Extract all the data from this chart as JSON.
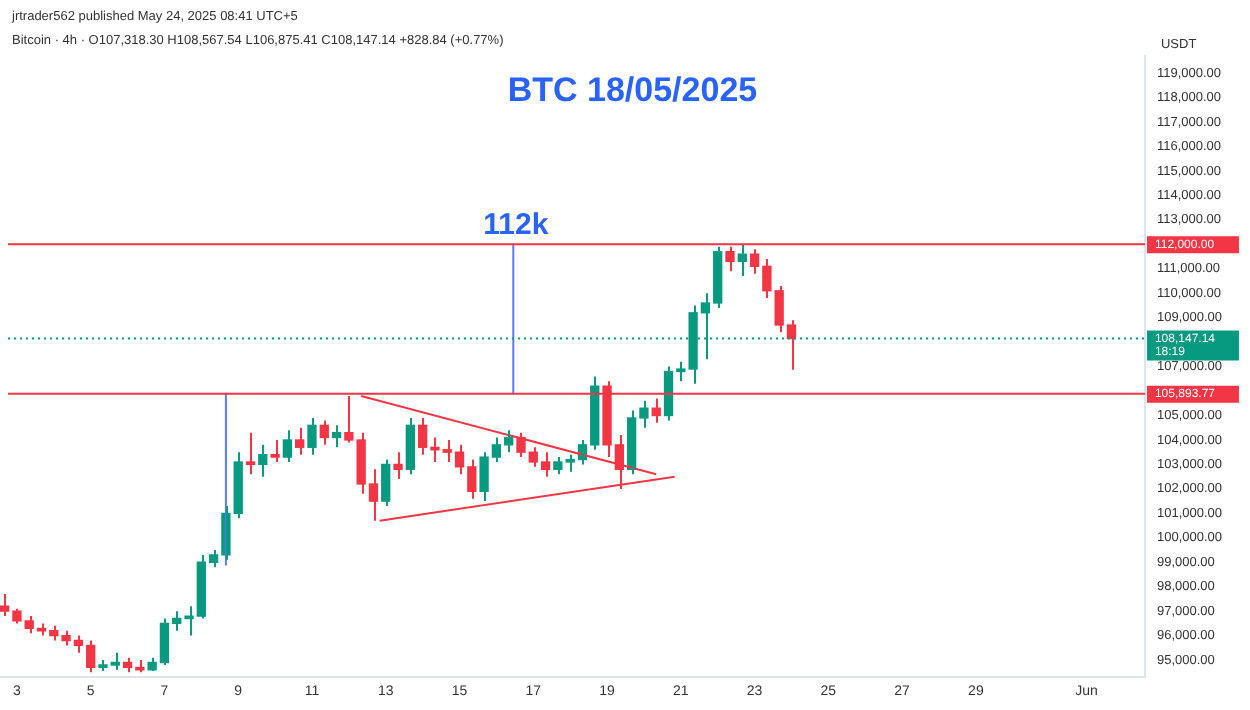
{
  "chart_data": {
    "type": "candlestick",
    "title": "BTC 18/05/2025",
    "ylabel": "USDT",
    "annotations": [
      "jrtrader562 published May 24, 2025 08:41 UTC+5",
      "Bitcoin · 4h · O107,318.30 H108,567.54 L106,875.41 C108,147.14 +828.84 (+0.77%)",
      {
        "text": "112k",
        "x": "2025-05-15T08:00",
        "y": 112000
      }
    ],
    "x": [
      "2025-05-02T16:00",
      "2025-05-03T00:00",
      "2025-05-03T08:00",
      "2025-05-03T16:00",
      "2025-05-04T00:00",
      "2025-05-04T08:00",
      "2025-05-04T16:00",
      "2025-05-05T00:00",
      "2025-05-05T08:00",
      "2025-05-05T16:00",
      "2025-05-06T00:00",
      "2025-05-06T08:00",
      "2025-05-06T16:00",
      "2025-05-07T00:00",
      "2025-05-07T08:00",
      "2025-05-07T16:00",
      "2025-05-08T00:00",
      "2025-05-08T08:00",
      "2025-05-08T16:00",
      "2025-05-09T00:00",
      "2025-05-09T08:00",
      "2025-05-09T16:00",
      "2025-05-10T00:00",
      "2025-05-10T08:00",
      "2025-05-10T16:00",
      "2025-05-11T00:00",
      "2025-05-11T08:00",
      "2025-05-11T16:00",
      "2025-05-12T00:00",
      "2025-05-12T08:00",
      "2025-05-12T16:00",
      "2025-05-13T00:00",
      "2025-05-13T08:00",
      "2025-05-13T16:00",
      "2025-05-14T00:00",
      "2025-05-14T08:00",
      "2025-05-14T16:00",
      "2025-05-15T00:00",
      "2025-05-15T08:00",
      "2025-05-15T16:00",
      "2025-05-16T00:00",
      "2025-05-16T08:00",
      "2025-05-16T16:00",
      "2025-05-17T00:00",
      "2025-05-17T08:00",
      "2025-05-17T16:00",
      "2025-05-18T00:00",
      "2025-05-18T08:00",
      "2025-05-18T16:00",
      "2025-05-19T00:00",
      "2025-05-19T08:00",
      "2025-05-19T16:00",
      "2025-05-20T00:00",
      "2025-05-20T08:00",
      "2025-05-20T16:00",
      "2025-05-21T00:00",
      "2025-05-21T08:00",
      "2025-05-21T16:00",
      "2025-05-22T00:00",
      "2025-05-22T08:00",
      "2025-05-22T16:00",
      "2025-05-23T00:00",
      "2025-05-23T08:00",
      "2025-05-23T16:00",
      "2025-05-24T00:00"
    ],
    "ohlc": [
      [
        97200,
        97700,
        96800,
        97000
      ],
      [
        97000,
        97100,
        96500,
        96600
      ],
      [
        96600,
        96800,
        96100,
        96300
      ],
      [
        96300,
        96500,
        96000,
        96200
      ],
      [
        96200,
        96400,
        95800,
        96000
      ],
      [
        96000,
        96200,
        95600,
        95800
      ],
      [
        95800,
        96000,
        95300,
        95600
      ],
      [
        95600,
        95800,
        94500,
        94700
      ],
      [
        94700,
        95000,
        94550,
        94800
      ],
      [
        94800,
        95300,
        94600,
        94900
      ],
      [
        94900,
        95100,
        94500,
        94700
      ],
      [
        94700,
        95000,
        94500,
        94600
      ],
      [
        94600,
        95100,
        94550,
        94900
      ],
      [
        94900,
        96700,
        94800,
        96500
      ],
      [
        96500,
        97000,
        96200,
        96700
      ],
      [
        96700,
        97200,
        96000,
        96800
      ],
      [
        96800,
        99300,
        96700,
        99000
      ],
      [
        99000,
        99500,
        98800,
        99300
      ],
      [
        99300,
        101300,
        99100,
        101000
      ],
      [
        101000,
        103500,
        100800,
        103100
      ],
      [
        103100,
        104300,
        102600,
        103000
      ],
      [
        103000,
        103800,
        102500,
        103400
      ],
      [
        103400,
        104000,
        103100,
        103300
      ],
      [
        103300,
        104400,
        103100,
        104000
      ],
      [
        104000,
        104500,
        103400,
        103700
      ],
      [
        103700,
        104900,
        103400,
        104600
      ],
      [
        104600,
        104800,
        103800,
        104100
      ],
      [
        104100,
        104600,
        103700,
        104300
      ],
      [
        104300,
        105800,
        103900,
        104000
      ],
      [
        104000,
        104300,
        101800,
        102200
      ],
      [
        102200,
        102800,
        100700,
        101500
      ],
      [
        101500,
        103200,
        101300,
        103000
      ],
      [
        103000,
        103500,
        102400,
        102800
      ],
      [
        102800,
        104900,
        102600,
        104600
      ],
      [
        104600,
        104900,
        103400,
        103700
      ],
      [
        103700,
        104100,
        103100,
        103600
      ],
      [
        103600,
        104000,
        103100,
        103500
      ],
      [
        103500,
        103800,
        102600,
        102900
      ],
      [
        102900,
        103200,
        101600,
        101900
      ],
      [
        101900,
        103500,
        101500,
        103300
      ],
      [
        103300,
        104100,
        103100,
        103800
      ],
      [
        103800,
        104400,
        103500,
        104100
      ],
      [
        104100,
        104300,
        103300,
        103500
      ],
      [
        103500,
        103700,
        102900,
        103100
      ],
      [
        103100,
        103500,
        102500,
        102800
      ],
      [
        102800,
        103300,
        102600,
        103100
      ],
      [
        103100,
        103400,
        102700,
        103200
      ],
      [
        103200,
        104000,
        103000,
        103800
      ],
      [
        103800,
        106600,
        103600,
        106200
      ],
      [
        106200,
        106400,
        103300,
        103800
      ],
      [
        103800,
        104200,
        102000,
        102800
      ],
      [
        102800,
        105200,
        102600,
        104900
      ],
      [
        104900,
        105600,
        104500,
        105300
      ],
      [
        105300,
        105700,
        104700,
        105000
      ],
      [
        105000,
        107000,
        104800,
        106800
      ],
      [
        106800,
        107200,
        106400,
        106900
      ],
      [
        106900,
        109500,
        106300,
        109200
      ],
      [
        109200,
        110000,
        107300,
        109600
      ],
      [
        109600,
        111900,
        109400,
        111700
      ],
      [
        111700,
        111900,
        110900,
        111300
      ],
      [
        111300,
        112000,
        110700,
        111600
      ],
      [
        111600,
        111800,
        110800,
        111100
      ],
      [
        111100,
        111400,
        109800,
        110100
      ],
      [
        110100,
        110300,
        108400,
        108700
      ],
      [
        108700,
        108900,
        106875.41,
        108147.14
      ]
    ],
    "colors": [
      "#f23645",
      "#f23645",
      "#f23645",
      "#f23645",
      "#f23645",
      "#f23645",
      "#f23645",
      "#f23645",
      "#089981",
      "#089981",
      "#f23645",
      "#f23645",
      "#089981",
      "#089981",
      "#089981",
      "#089981",
      "#089981",
      "#089981",
      "#089981",
      "#089981",
      "#f23645",
      "#089981",
      "#f23645",
      "#089981",
      "#f23645",
      "#089981",
      "#f23645",
      "#089981",
      "#f23645",
      "#f23645",
      "#f23645",
      "#089981",
      "#f23645",
      "#089981",
      "#f23645",
      "#f23645",
      "#f23645",
      "#f23645",
      "#f23645",
      "#089981",
      "#089981",
      "#089981",
      "#f23645",
      "#f23645",
      "#f23645",
      "#089981",
      "#089981",
      "#089981",
      "#089981",
      "#f23645",
      "#f23645",
      "#089981",
      "#089981",
      "#f23645",
      "#089981",
      "#089981",
      "#089981",
      "#089981",
      "#089981",
      "#f23645",
      "#089981",
      "#f23645",
      "#f23645",
      "#f23645",
      "#f23645"
    ],
    "series": [
      {
        "type": "line",
        "color": "#f23645",
        "x": [
          "2025-05-12T08:00",
          "2025-05-20T08:00"
        ],
        "values": [
          105800,
          102600
        ]
      },
      {
        "type": "line",
        "color": "#f23645",
        "x": [
          "2025-05-12T20:00",
          "2025-05-20T20:00"
        ],
        "values": [
          100700,
          102500
        ]
      },
      {
        "type": "line",
        "color": "#5b7cfa",
        "x": [
          "2025-05-08T16:00",
          "2025-05-08T16:00"
        ],
        "values": [
          105900,
          98900
        ]
      },
      {
        "type": "line",
        "color": "#5b7cfa",
        "x": [
          "2025-05-16T11:00",
          "2025-05-16T11:00"
        ],
        "values": [
          112000,
          105900
        ]
      }
    ],
    "ref_lines": [
      {
        "axis": "y",
        "value": 112000,
        "label": "112,000.00",
        "color": "#f23645",
        "line_style": "solid"
      },
      {
        "axis": "y",
        "value": 105893.77,
        "label": "105,893.77",
        "color": "#f23645",
        "line_style": "solid"
      },
      {
        "axis": "y",
        "value": 108147.14,
        "label": "108,147.14\n18:19",
        "color": "#089981",
        "line_style": "dotted"
      }
    ],
    "xlim": [
      "2025-05-02T13:00",
      "2025-06-02T14:00"
    ],
    "xticks": [
      {
        "value": "2025-05-03",
        "label": "3"
      },
      {
        "value": "2025-05-05",
        "label": "5"
      },
      {
        "value": "2025-05-07",
        "label": "7"
      },
      {
        "value": "2025-05-09",
        "label": "9"
      },
      {
        "value": "2025-05-11",
        "label": "11"
      },
      {
        "value": "2025-05-13",
        "label": "13"
      },
      {
        "value": "2025-05-15",
        "label": "15"
      },
      {
        "value": "2025-05-17",
        "label": "17"
      },
      {
        "value": "2025-05-19",
        "label": "19"
      },
      {
        "value": "2025-05-21",
        "label": "21"
      },
      {
        "value": "2025-05-23",
        "label": "23"
      },
      {
        "value": "2025-05-25",
        "label": "25"
      },
      {
        "value": "2025-05-27",
        "label": "27"
      },
      {
        "value": "2025-05-29",
        "label": "29"
      },
      {
        "value": "2025-06-01",
        "label": "Jun"
      }
    ],
    "ylim": [
      94300,
      119700
    ],
    "yticks": [
      {
        "value": 95000,
        "label": "95,000.00"
      },
      {
        "value": 96000,
        "label": "96,000.00"
      },
      {
        "value": 97000,
        "label": "97,000.00"
      },
      {
        "value": 98000,
        "label": "98,000.00"
      },
      {
        "value": 99000,
        "label": "99,000.00"
      },
      {
        "value": 100000,
        "label": "100,000.00"
      },
      {
        "value": 101000,
        "label": "101,000.00"
      },
      {
        "value": 102000,
        "label": "102,000.00"
      },
      {
        "value": 103000,
        "label": "103,000.00"
      },
      {
        "value": 104000,
        "label": "104,000.00"
      },
      {
        "value": 105000,
        "label": "105,000.00"
      },
      {
        "value": 107000,
        "label": "107,000.00"
      },
      {
        "value": 109000,
        "label": "109,000.00"
      },
      {
        "value": 110000,
        "label": "110,000.00"
      },
      {
        "value": 111000,
        "label": "111,000.00"
      },
      {
        "value": 113000,
        "label": "113,000.00"
      },
      {
        "value": 114000,
        "label": "114,000.00"
      },
      {
        "value": 115000,
        "label": "115,000.00"
      },
      {
        "value": 116000,
        "label": "116,000.00"
      },
      {
        "value": 117000,
        "label": "117,000.00"
      },
      {
        "value": 118000,
        "label": "118,000.00"
      },
      {
        "value": 119000,
        "label": "119,000.00"
      }
    ]
  }
}
